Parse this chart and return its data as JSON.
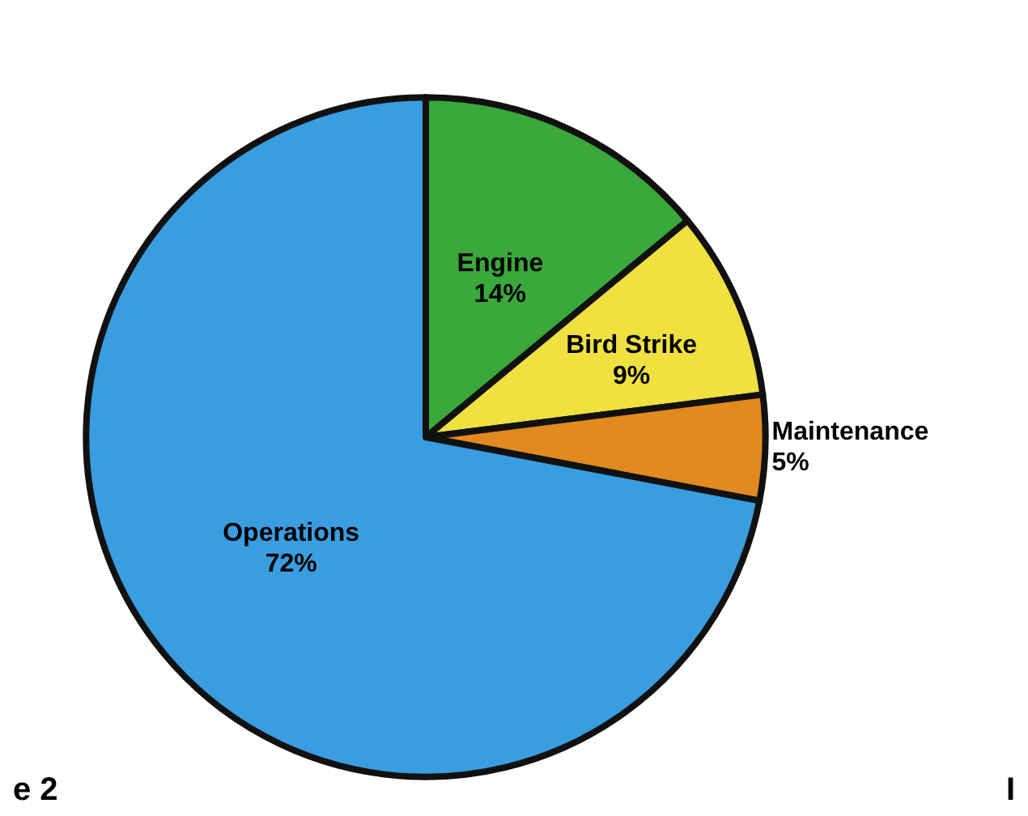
{
  "chart_data": {
    "type": "pie",
    "categories": [
      "Engine",
      "Bird Strike",
      "Maintenance",
      "Operations"
    ],
    "values": [
      14,
      9,
      5,
      72
    ],
    "colors": [
      "#3aa83a",
      "#f0e040",
      "#e08a20",
      "#3a9de0"
    ],
    "value_labels": [
      "14%",
      "9%",
      "5%",
      "72%"
    ],
    "annotations": [
      "e 2",
      "I"
    ]
  }
}
